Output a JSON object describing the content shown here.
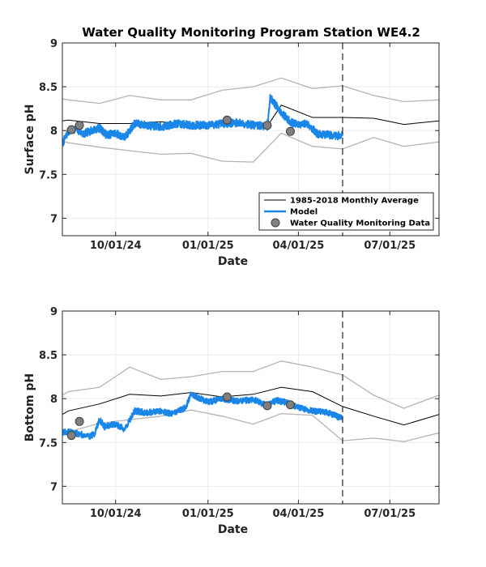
{
  "figure": {
    "title": "Water Quality Monitoring Program Station WE4.2"
  },
  "colors": {
    "average": "#000000",
    "envelope": "#b3b3b3",
    "model": "#1a87e8",
    "wqm_fill": "#808080",
    "wqm_edge": "#404040",
    "grid": "#ebebeb",
    "divider": "#333333"
  },
  "legend": {
    "placement": "bottom-right of top panel",
    "entries": [
      {
        "label": "1985-2018 Monthly Average",
        "symbol": "line-black"
      },
      {
        "label": "Model",
        "symbol": "line-blue"
      },
      {
        "label": "Water Quality Monitoring Data",
        "symbol": "circle-gray"
      }
    ]
  },
  "chart_data": [
    {
      "type": "line",
      "ylabel": "Surface pH",
      "xlabel": "Date",
      "ylim": [
        6.8,
        9.0
      ],
      "xlim": [
        "2024-08-09",
        "2025-08-19"
      ],
      "yticks": [
        7,
        7.5,
        8,
        8.5,
        9
      ],
      "ytick_labels": [
        "7",
        "7.5",
        "8",
        "8.5",
        "9"
      ],
      "xticks": [
        "2024-10-01",
        "2025-01-01",
        "2025-04-01",
        "2025-07-01"
      ],
      "xtick_labels": [
        "10/01/24",
        "01/01/25",
        "04/01/25",
        "07/01/25"
      ],
      "grid": true,
      "divider_date": "2025-05-15",
      "series": [
        {
          "name": "1985-2018 Monthly Average",
          "kind": "average",
          "points": [
            [
              "2024-08-09",
              8.11
            ],
            [
              "2024-08-15",
              8.12
            ],
            [
              "2024-09-15",
              8.08
            ],
            [
              "2024-10-15",
              8.08
            ],
            [
              "2024-11-15",
              8.1
            ],
            [
              "2024-12-15",
              8.07
            ],
            [
              "2025-01-15",
              8.08
            ],
            [
              "2025-02-15",
              8.06
            ],
            [
              "2025-03-01",
              8.05
            ],
            [
              "2025-03-15",
              8.29
            ],
            [
              "2025-04-15",
              8.15
            ],
            [
              "2025-05-15",
              8.15
            ],
            [
              "2025-06-15",
              8.14
            ],
            [
              "2025-07-15",
              8.07
            ],
            [
              "2025-08-19",
              8.11
            ]
          ]
        },
        {
          "name": "",
          "kind": "envelope",
          "points": [
            [
              "2024-08-09",
              8.36
            ],
            [
              "2024-08-15",
              8.35
            ],
            [
              "2024-09-15",
              8.31
            ],
            [
              "2024-10-15",
              8.4
            ],
            [
              "2024-11-15",
              8.35
            ],
            [
              "2024-12-15",
              8.35
            ],
            [
              "2025-01-15",
              8.46
            ],
            [
              "2025-02-15",
              8.5
            ],
            [
              "2025-03-15",
              8.6
            ],
            [
              "2025-04-15",
              8.48
            ],
            [
              "2025-05-15",
              8.51
            ],
            [
              "2025-06-15",
              8.4
            ],
            [
              "2025-07-15",
              8.33
            ],
            [
              "2025-08-19",
              8.35
            ]
          ]
        },
        {
          "name": "",
          "kind": "envelope",
          "points": [
            [
              "2024-08-09",
              7.88
            ],
            [
              "2024-08-15",
              7.86
            ],
            [
              "2024-09-15",
              7.81
            ],
            [
              "2024-10-15",
              7.77
            ],
            [
              "2024-11-15",
              7.73
            ],
            [
              "2024-12-15",
              7.74
            ],
            [
              "2025-01-15",
              7.65
            ],
            [
              "2025-02-15",
              7.64
            ],
            [
              "2025-03-15",
              7.97
            ],
            [
              "2025-04-15",
              7.82
            ],
            [
              "2025-05-15",
              7.79
            ],
            [
              "2025-06-15",
              7.92
            ],
            [
              "2025-07-15",
              7.82
            ],
            [
              "2025-08-19",
              7.87
            ]
          ]
        },
        {
          "name": "Model",
          "kind": "model",
          "points": [
            [
              "2024-08-09",
              7.85
            ],
            [
              "2024-08-15",
              7.99
            ],
            [
              "2024-08-22",
              8.02
            ],
            [
              "2024-08-30",
              7.96
            ],
            [
              "2024-09-07",
              8.0
            ],
            [
              "2024-09-15",
              8.03
            ],
            [
              "2024-09-22",
              7.95
            ],
            [
              "2024-10-01",
              7.97
            ],
            [
              "2024-10-10",
              7.92
            ],
            [
              "2024-10-20",
              8.08
            ],
            [
              "2024-11-01",
              8.06
            ],
            [
              "2024-11-15",
              8.04
            ],
            [
              "2024-12-01",
              8.08
            ],
            [
              "2024-12-15",
              8.06
            ],
            [
              "2025-01-01",
              8.06
            ],
            [
              "2025-01-15",
              8.08
            ],
            [
              "2025-02-01",
              8.09
            ],
            [
              "2025-02-15",
              8.06
            ],
            [
              "2025-03-01",
              8.05
            ],
            [
              "2025-03-04",
              8.38
            ],
            [
              "2025-03-10",
              8.28
            ],
            [
              "2025-03-17",
              8.18
            ],
            [
              "2025-03-24",
              8.1
            ],
            [
              "2025-04-01",
              8.06
            ],
            [
              "2025-04-10",
              8.08
            ],
            [
              "2025-04-20",
              7.96
            ],
            [
              "2025-05-01",
              7.95
            ],
            [
              "2025-05-10",
              7.94
            ],
            [
              "2025-05-15",
              7.96
            ]
          ]
        },
        {
          "name": "Water Quality Monitoring Data",
          "kind": "wqm",
          "points": [
            [
              "2024-08-18",
              8.01
            ],
            [
              "2024-08-26",
              8.06
            ],
            [
              "2025-01-20",
              8.12
            ],
            [
              "2025-03-01",
              8.06
            ],
            [
              "2025-03-24",
              7.99
            ]
          ]
        }
      ]
    },
    {
      "type": "line",
      "ylabel": "Bottom pH",
      "xlabel": "Date",
      "ylim": [
        6.8,
        9.0
      ],
      "xlim": [
        "2024-08-09",
        "2025-08-19"
      ],
      "yticks": [
        7,
        7.5,
        8,
        8.5,
        9
      ],
      "ytick_labels": [
        "7",
        "7.5",
        "8",
        "8.5",
        "9"
      ],
      "xticks": [
        "2024-10-01",
        "2025-01-01",
        "2025-04-01",
        "2025-07-01"
      ],
      "xtick_labels": [
        "10/01/24",
        "01/01/25",
        "04/01/25",
        "07/01/25"
      ],
      "grid": true,
      "divider_date": "2025-05-15",
      "series": [
        {
          "name": "1985-2018 Monthly Average",
          "kind": "average",
          "points": [
            [
              "2024-08-09",
              7.82
            ],
            [
              "2024-08-15",
              7.86
            ],
            [
              "2024-09-15",
              7.94
            ],
            [
              "2024-10-15",
              8.05
            ],
            [
              "2024-11-15",
              8.03
            ],
            [
              "2024-12-15",
              8.07
            ],
            [
              "2025-01-15",
              8.02
            ],
            [
              "2025-02-15",
              8.05
            ],
            [
              "2025-03-15",
              8.13
            ],
            [
              "2025-04-15",
              8.08
            ],
            [
              "2025-05-15",
              7.91
            ],
            [
              "2025-06-15",
              7.8
            ],
            [
              "2025-07-15",
              7.7
            ],
            [
              "2025-08-19",
              7.82
            ]
          ]
        },
        {
          "name": "",
          "kind": "envelope",
          "points": [
            [
              "2024-08-09",
              8.04
            ],
            [
              "2024-08-15",
              8.08
            ],
            [
              "2024-09-15",
              8.13
            ],
            [
              "2024-10-15",
              8.36
            ],
            [
              "2024-11-15",
              8.22
            ],
            [
              "2024-12-15",
              8.25
            ],
            [
              "2025-01-15",
              8.31
            ],
            [
              "2025-02-15",
              8.31
            ],
            [
              "2025-03-15",
              8.43
            ],
            [
              "2025-04-15",
              8.36
            ],
            [
              "2025-05-15",
              8.27
            ],
            [
              "2025-06-15",
              8.04
            ],
            [
              "2025-07-15",
              7.89
            ],
            [
              "2025-08-19",
              8.04
            ]
          ]
        },
        {
          "name": "",
          "kind": "envelope",
          "points": [
            [
              "2024-08-09",
              7.6
            ],
            [
              "2024-08-15",
              7.62
            ],
            [
              "2024-09-15",
              7.72
            ],
            [
              "2024-10-15",
              7.76
            ],
            [
              "2024-11-15",
              7.8
            ],
            [
              "2024-12-15",
              7.87
            ],
            [
              "2025-01-15",
              7.8
            ],
            [
              "2025-02-15",
              7.71
            ],
            [
              "2025-03-15",
              7.83
            ],
            [
              "2025-04-15",
              7.81
            ],
            [
              "2025-05-15",
              7.52
            ],
            [
              "2025-06-15",
              7.55
            ],
            [
              "2025-07-15",
              7.51
            ],
            [
              "2025-08-19",
              7.61
            ]
          ]
        },
        {
          "name": "Model",
          "kind": "model",
          "points": [
            [
              "2024-08-09",
              7.62
            ],
            [
              "2024-08-15",
              7.62
            ],
            [
              "2024-08-25",
              7.6
            ],
            [
              "2024-09-05",
              7.57
            ],
            [
              "2024-09-10",
              7.6
            ],
            [
              "2024-09-15",
              7.76
            ],
            [
              "2024-09-20",
              7.68
            ],
            [
              "2024-10-01",
              7.71
            ],
            [
              "2024-10-10",
              7.65
            ],
            [
              "2024-10-20",
              7.86
            ],
            [
              "2024-11-01",
              7.84
            ],
            [
              "2024-11-15",
              7.86
            ],
            [
              "2024-11-25",
              7.83
            ],
            [
              "2024-12-10",
              7.9
            ],
            [
              "2024-12-15",
              8.05
            ],
            [
              "2025-01-01",
              7.96
            ],
            [
              "2025-01-15",
              8.0
            ],
            [
              "2025-02-01",
              7.97
            ],
            [
              "2025-02-15",
              7.99
            ],
            [
              "2025-03-01",
              7.92
            ],
            [
              "2025-03-10",
              7.98
            ],
            [
              "2025-03-20",
              7.96
            ],
            [
              "2025-04-01",
              7.9
            ],
            [
              "2025-04-15",
              7.86
            ],
            [
              "2025-05-01",
              7.84
            ],
            [
              "2025-05-15",
              7.77
            ]
          ]
        },
        {
          "name": "Water Quality Monitoring Data",
          "kind": "wqm",
          "points": [
            [
              "2024-08-18",
              7.58
            ],
            [
              "2024-08-26",
              7.74
            ],
            [
              "2025-01-20",
              8.02
            ],
            [
              "2025-03-01",
              7.92
            ],
            [
              "2025-03-24",
              7.93
            ]
          ]
        }
      ]
    }
  ]
}
